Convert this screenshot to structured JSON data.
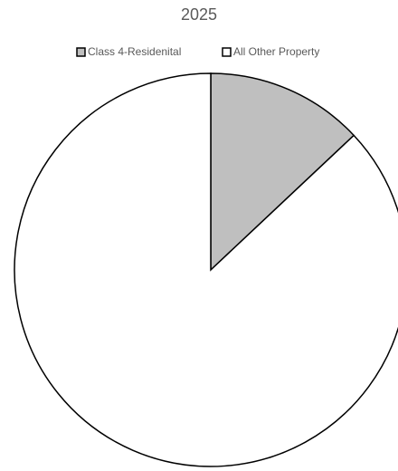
{
  "chart_data": {
    "type": "pie",
    "title": "2025",
    "categories": [
      "Class 4-Residenital",
      "All Other Property"
    ],
    "values": [
      13,
      87
    ],
    "colors": [
      "#bfbfbf",
      "#ffffff"
    ],
    "legend": "top"
  }
}
